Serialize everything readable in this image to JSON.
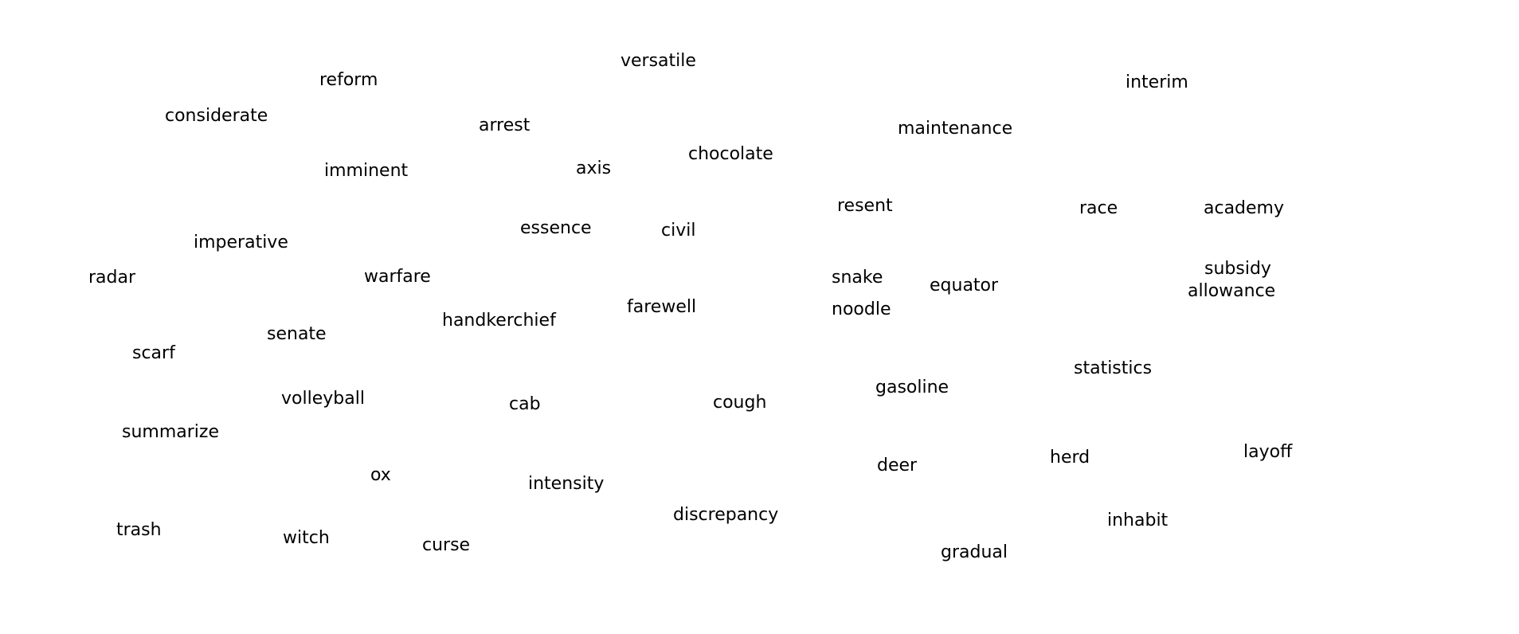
{
  "words": [
    "versatile",
    "reform",
    "interim",
    "considerate",
    "arrest",
    "maintenance",
    "chocolate",
    "imminent",
    "axis",
    "resent",
    "race",
    "academy",
    "imperative",
    "essence",
    "civil",
    "subsidy",
    "radar",
    "warfare",
    "snake",
    "equator",
    "allowance",
    "farewell",
    "handkerchief",
    "noodle",
    "senate",
    "scarf",
    "statistics",
    "gasoline",
    "volleyball",
    "cab",
    "cough",
    "summarize",
    "herd",
    "layoff",
    "deer",
    "ox",
    "intensity",
    "discrepancy",
    "inhabit",
    "trash",
    "witch",
    "curse",
    "gradual"
  ]
}
